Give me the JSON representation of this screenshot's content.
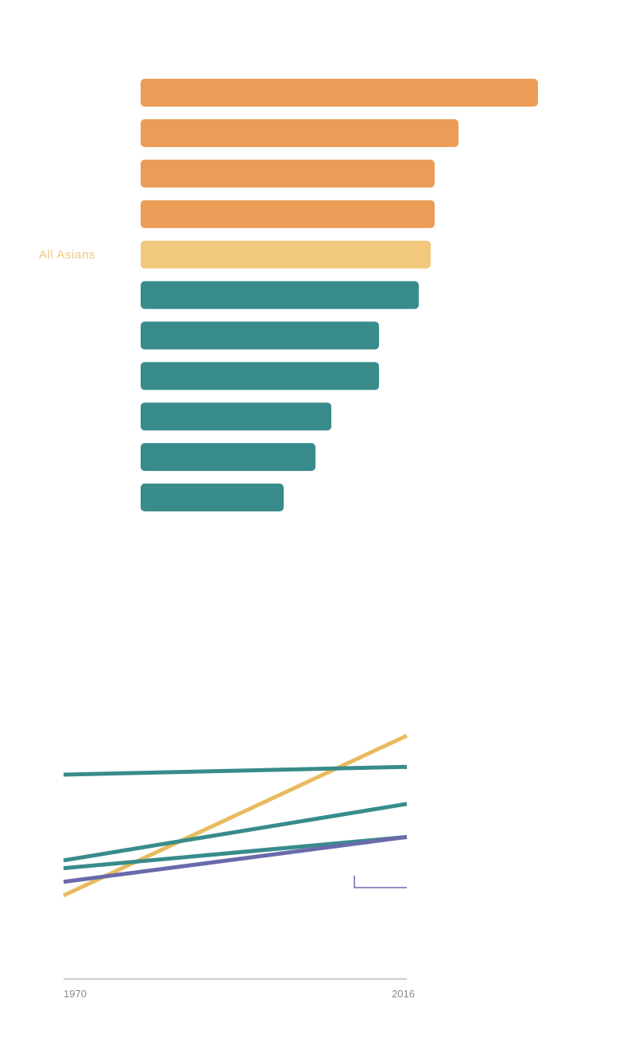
{
  "chart_data": [
    {
      "type": "bar",
      "orientation": "horizontal",
      "categories": [
        "",
        "",
        "",
        "",
        "All Asians",
        "",
        "",
        "",
        "",
        "",
        ""
      ],
      "values": [
        100,
        80,
        74,
        74,
        73,
        70,
        60,
        60,
        48,
        44,
        36
      ],
      "bar_colors": [
        "#eb9c56",
        "#eb9c56",
        "#eb9c56",
        "#eb9c56",
        "#f2c87e",
        "#388c8b",
        "#388c8b",
        "#388c8b",
        "#388c8b",
        "#388c8b",
        "#388c8b"
      ],
      "highlight_label_color": "#f2c87e",
      "xlim": [
        0,
        100
      ],
      "axis_shown": false,
      "grid": false
    },
    {
      "type": "line",
      "x": [
        1970,
        2016
      ],
      "x_tick_labels": [
        "1970",
        "2016"
      ],
      "xlim": [
        1970,
        2016
      ],
      "ylim": [
        0,
        100
      ],
      "y_axis_shown": false,
      "series": [
        {
          "values": [
            18,
            100
          ],
          "color": "#e8bb5e"
        },
        {
          "values": [
            80,
            84
          ],
          "color": "#388c8b"
        },
        {
          "values": [
            36,
            65
          ],
          "color": "#388c8b"
        },
        {
          "values": [
            32,
            48
          ],
          "color": "#388c8b"
        },
        {
          "values": [
            25,
            48
          ],
          "color": "#6a6aab"
        }
      ],
      "annotation_marker_color": "#6a6aab",
      "grid": false
    }
  ]
}
